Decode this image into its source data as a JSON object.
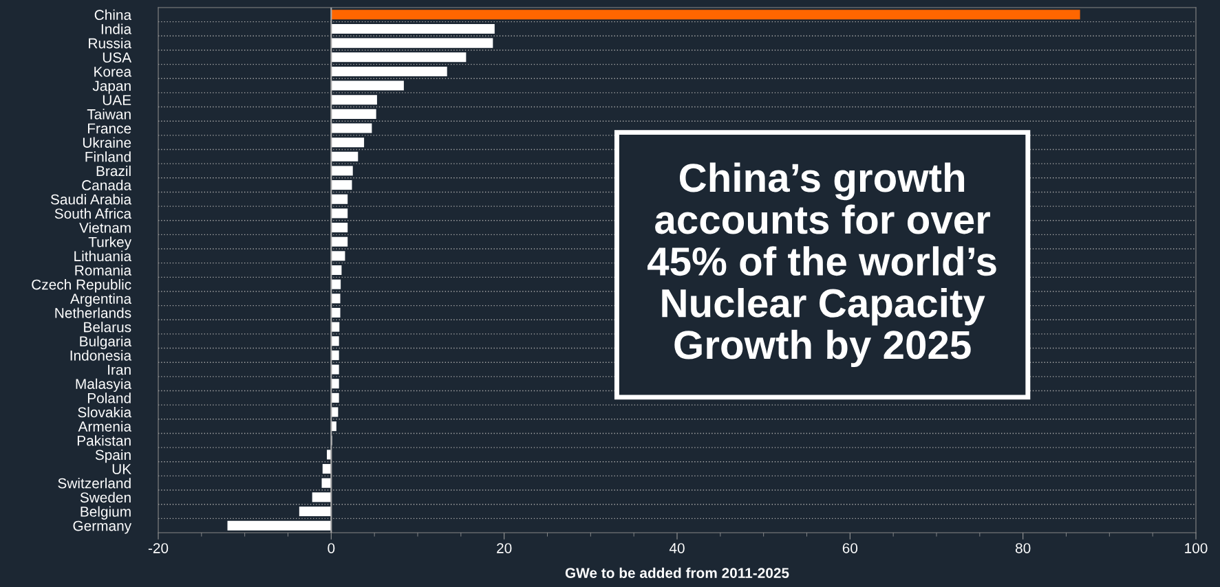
{
  "chart_data": {
    "type": "bar",
    "orientation": "horizontal",
    "categories": [
      "China",
      "India",
      "Russia",
      "USA",
      "Korea",
      "Japan",
      "UAE",
      "Taiwan",
      "France",
      "Ukraine",
      "Finland",
      "Brazil",
      "Canada",
      "Saudi Arabia",
      "South Africa",
      "Vietnam",
      "Turkey",
      "Lithuania",
      "Romania",
      "Czech Republic",
      "Argentina",
      "Netherlands",
      "Belarus",
      "Bulgaria",
      "Indonesia",
      "Iran",
      "Malasyia",
      "Poland",
      "Slovakia",
      "Armenia",
      "Pakistan",
      "Spain",
      "UK",
      "Switzerland",
      "Sweden",
      "Belgium",
      "Germany"
    ],
    "values": [
      86.6,
      18.9,
      18.7,
      15.6,
      13.4,
      8.4,
      5.3,
      5.2,
      4.7,
      3.8,
      3.1,
      2.5,
      2.4,
      1.9,
      1.9,
      1.9,
      1.9,
      1.6,
      1.2,
      1.1,
      1.05,
      1.05,
      0.95,
      0.9,
      0.9,
      0.9,
      0.9,
      0.9,
      0.8,
      0.6,
      0.1,
      -0.5,
      -1.0,
      -1.1,
      -2.2,
      -3.7,
      -12.0
    ],
    "colors": [
      "#ff6600",
      "#ffffff",
      "#ffffff",
      "#ffffff",
      "#ffffff",
      "#ffffff",
      "#ffffff",
      "#ffffff",
      "#ffffff",
      "#ffffff",
      "#ffffff",
      "#ffffff",
      "#ffffff",
      "#ffffff",
      "#ffffff",
      "#ffffff",
      "#ffffff",
      "#ffffff",
      "#ffffff",
      "#ffffff",
      "#ffffff",
      "#ffffff",
      "#ffffff",
      "#ffffff",
      "#ffffff",
      "#ffffff",
      "#ffffff",
      "#ffffff",
      "#ffffff",
      "#ffffff",
      "#ffffff",
      "#ffffff",
      "#ffffff",
      "#ffffff",
      "#ffffff",
      "#ffffff",
      "#ffffff"
    ],
    "xlim": [
      -20,
      100
    ],
    "xticks": [
      -20,
      0,
      20,
      40,
      60,
      80,
      100
    ],
    "xlabel": "GWe to be added from 2011-2025",
    "grid": "y",
    "legend": false,
    "annotations": [
      "China’s growth\naccounts for over\n45% of the world’s\nNuclear Capacity\nGrowth by 2025"
    ]
  }
}
